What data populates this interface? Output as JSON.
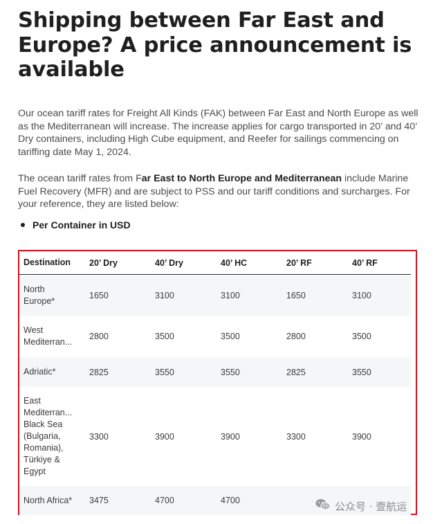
{
  "title": "Shipping between Far East and Europe? A price announcement is available",
  "para1": "Our ocean tariff rates for Freight All Kinds (FAK) between Far East and North Europe as well as the Mediterranean will increase. The increase applies for cargo transported in 20’ and 40’ Dry containers, including High Cube equipment, and Reefer for sailings commencing on tariffing date May 1, 2024.",
  "para2": {
    "pre": "The ocean tariff rates from F",
    "bold": "ar East to North Europe and Mediterranean",
    "post": " include Marine Fuel Recovery (MFR) and are subject to PSS and our tariff conditions and surcharges. For your reference, they are listed below:"
  },
  "bullet": "Per Container in USD",
  "table": {
    "headers": [
      "Destination",
      "20’ Dry",
      "40’ Dry",
      "40’ HC",
      "20’ RF",
      "40’ RF"
    ],
    "rows": [
      [
        "North Europe*",
        "1650",
        "3100",
        "3100",
        "1650",
        "3100"
      ],
      [
        "West Mediterran...",
        "2800",
        "3500",
        "3500",
        "2800",
        "3500"
      ],
      [
        "Adriatic*",
        "2825",
        "3550",
        "3550",
        "2825",
        "3550"
      ],
      [
        "East Mediterran... Black Sea (Bulgaria, Romania), Türkiye & Egypt",
        "3300",
        "3900",
        "3900",
        "3300",
        "3900"
      ],
      [
        "North Africa*",
        "3475",
        "4700",
        "4700",
        "",
        ""
      ]
    ]
  },
  "watermark": {
    "text": "公众号 · 壹航运",
    "icon": "wechat-icon"
  },
  "colors": {
    "highlight_border": "#d0101f",
    "row_stripe": "#f5f6f8"
  }
}
